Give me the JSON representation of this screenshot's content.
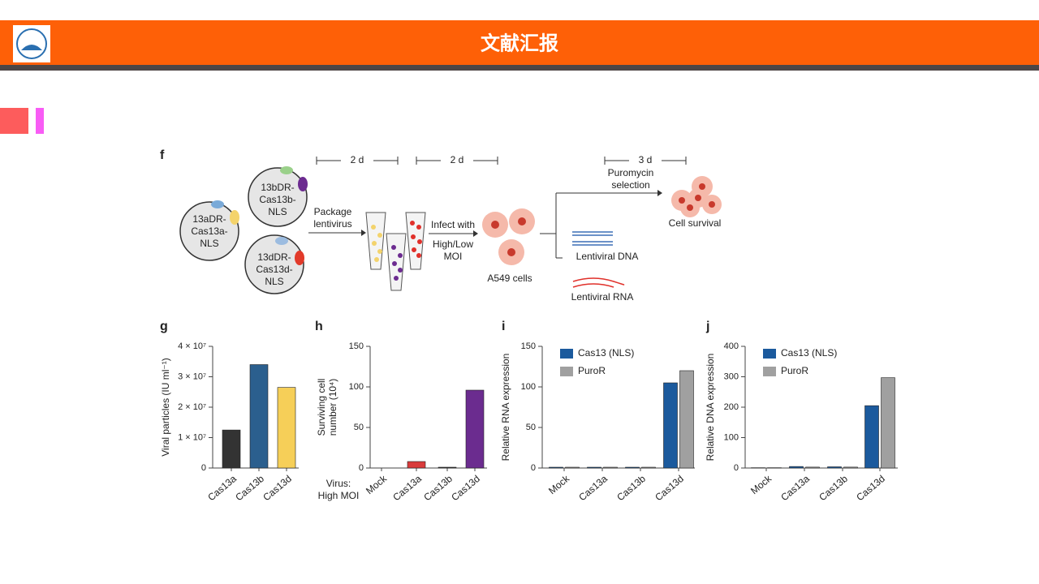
{
  "header": {
    "title": "文献汇报"
  },
  "diagram": {
    "panel": "f",
    "plasmids": [
      [
        "13aDR-",
        "Cas13a-",
        "NLS"
      ],
      [
        "13bDR-",
        "Cas13b-",
        "NLS"
      ],
      [
        "13dDR-",
        "Cas13d-",
        "NLS"
      ]
    ],
    "durations": [
      "2 d",
      "2 d",
      "3 d"
    ],
    "package": [
      "Package",
      "lentivirus"
    ],
    "infect": [
      "Infect with",
      "High/Low",
      "MOI"
    ],
    "cells": "A549 cells",
    "selection": [
      "Puromycin",
      "selection"
    ],
    "survival": "Cell survival",
    "dna": "Lentiviral DNA",
    "rna": "Lentiviral RNA"
  },
  "chart_data": [
    {
      "type": "bar",
      "panel": "g",
      "ylabel": [
        "Viral particles (IU ml⁻¹)"
      ],
      "categories": [
        "Cas13a",
        "Cas13b",
        "Cas13d"
      ],
      "series": [
        {
          "values": [
            12500000,
            34000000,
            26500000
          ],
          "colors": [
            "#333333",
            "#2b5f8e",
            "#f6cf58"
          ]
        }
      ],
      "ylim": [
        0,
        40000000
      ],
      "yticks": [
        0,
        {
          "value": 10000000,
          "label": "1 × 10⁷"
        },
        {
          "value": 20000000,
          "label": "2 × 10⁷"
        },
        {
          "value": 30000000,
          "label": "3 × 10⁷"
        },
        {
          "value": 40000000,
          "label": "4 × 10⁷"
        }
      ]
    },
    {
      "type": "bar",
      "panel": "h",
      "ylabel": [
        "Surviving cell",
        "number (10⁴)"
      ],
      "xlabel": [
        "Virus:",
        "High MOI"
      ],
      "categories": [
        "Mock",
        "Cas13a",
        "Cas13b",
        "Cas13d"
      ],
      "series": [
        {
          "values": [
            0,
            8,
            1,
            96
          ],
          "colors": [
            "#333333",
            "#d93b3b",
            "#333333",
            "#6b2c8f"
          ]
        }
      ],
      "ylim": [
        0,
        150
      ],
      "yticks": [
        0,
        50,
        100,
        150
      ]
    },
    {
      "type": "grouped_bar",
      "panel": "i",
      "ylabel": [
        "Relative RNA expression"
      ],
      "categories": [
        "Mock",
        "Cas13a",
        "Cas13b",
        "Cas13d"
      ],
      "series": [
        {
          "name": "Cas13 (NLS)",
          "color": "#1b5a9d",
          "values": [
            1,
            1,
            1,
            105
          ]
        },
        {
          "name": "PuroR",
          "color": "#a0a0a0",
          "values": [
            1,
            1,
            1,
            120
          ]
        }
      ],
      "ylim": [
        0,
        150
      ],
      "yticks": [
        0,
        50,
        100,
        150
      ]
    },
    {
      "type": "grouped_bar",
      "panel": "j",
      "ylabel": [
        "Relative DNA expression"
      ],
      "categories": [
        "Mock",
        "Cas13a",
        "Cas13b",
        "Cas13d"
      ],
      "series": [
        {
          "name": "Cas13 (NLS)",
          "color": "#1b5a9d",
          "values": [
            1,
            5,
            4,
            205
          ]
        },
        {
          "name": "PuroR",
          "color": "#a0a0a0",
          "values": [
            1,
            3,
            3,
            297
          ]
        }
      ],
      "ylim": [
        0,
        400
      ],
      "yticks": [
        0,
        100,
        200,
        300,
        400
      ]
    }
  ]
}
